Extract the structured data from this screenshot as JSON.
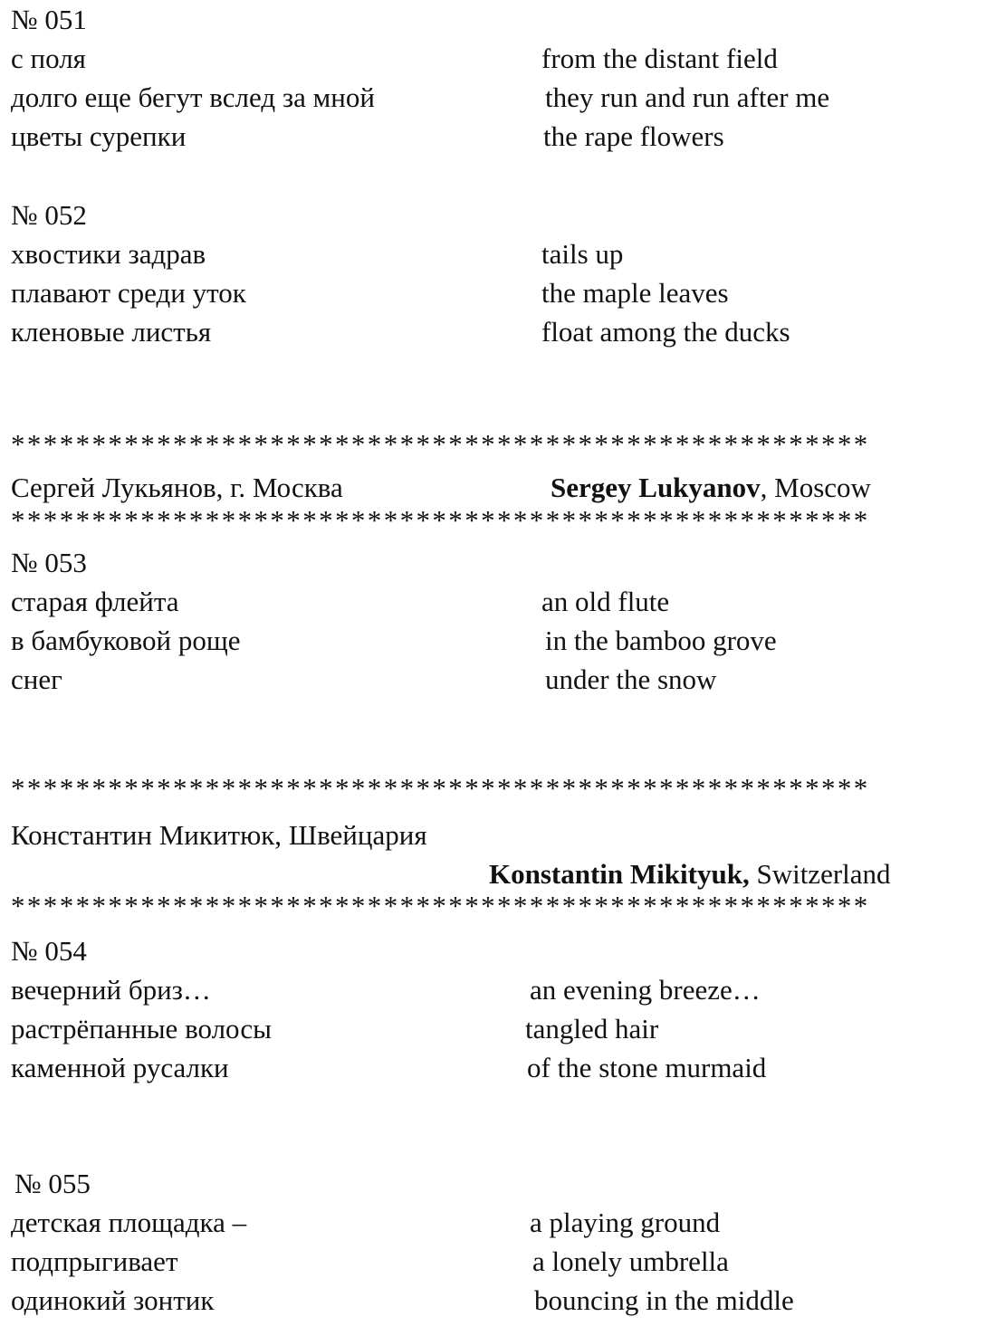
{
  "separator": "*****************************************************",
  "poems": [
    {
      "number": "№ 051",
      "ru": [
        "с поля",
        "долго еще бегут вслед за мной",
        "цветы сурепки"
      ],
      "en": [
        "from the distant field",
        "they run and run after me",
        "the rape flowers"
      ]
    },
    {
      "number": "№ 052",
      "ru": [
        "хвостики задрав",
        "плавают среди уток",
        "кленовые листья"
      ],
      "en": [
        "tails up",
        "the maple leaves",
        "float among the ducks"
      ]
    },
    {
      "number": "№ 053",
      "ru": [
        "старая флейта",
        "в бамбуковой роще",
        "снег"
      ],
      "en": [
        "an old flute",
        "in the bamboo grove",
        "under the snow"
      ]
    },
    {
      "number": "№ 054",
      "ru": [
        "вечерний бриз…",
        "растрёпанные волосы",
        "каменной русалки"
      ],
      "en": [
        "an evening breeze…",
        "tangled hair",
        "of the stone murmaid"
      ]
    },
    {
      "number": "№ 055",
      "ru": [
        "детская площадка –",
        "подпрыгивает",
        "одинокий зонтик"
      ],
      "en": [
        "a playing ground",
        "a lonely umbrella",
        "bouncing in the middle"
      ]
    }
  ],
  "authors": [
    {
      "ru": "Сергей Лукьянов, г. Москва",
      "en_name": "Sergey Lukyanov",
      "en_place": ", Moscow"
    },
    {
      "ru": "Константин Микитюк, Швейцария",
      "en_name": "Konstantin Mikityuk,",
      "en_place": " Switzerland"
    }
  ]
}
